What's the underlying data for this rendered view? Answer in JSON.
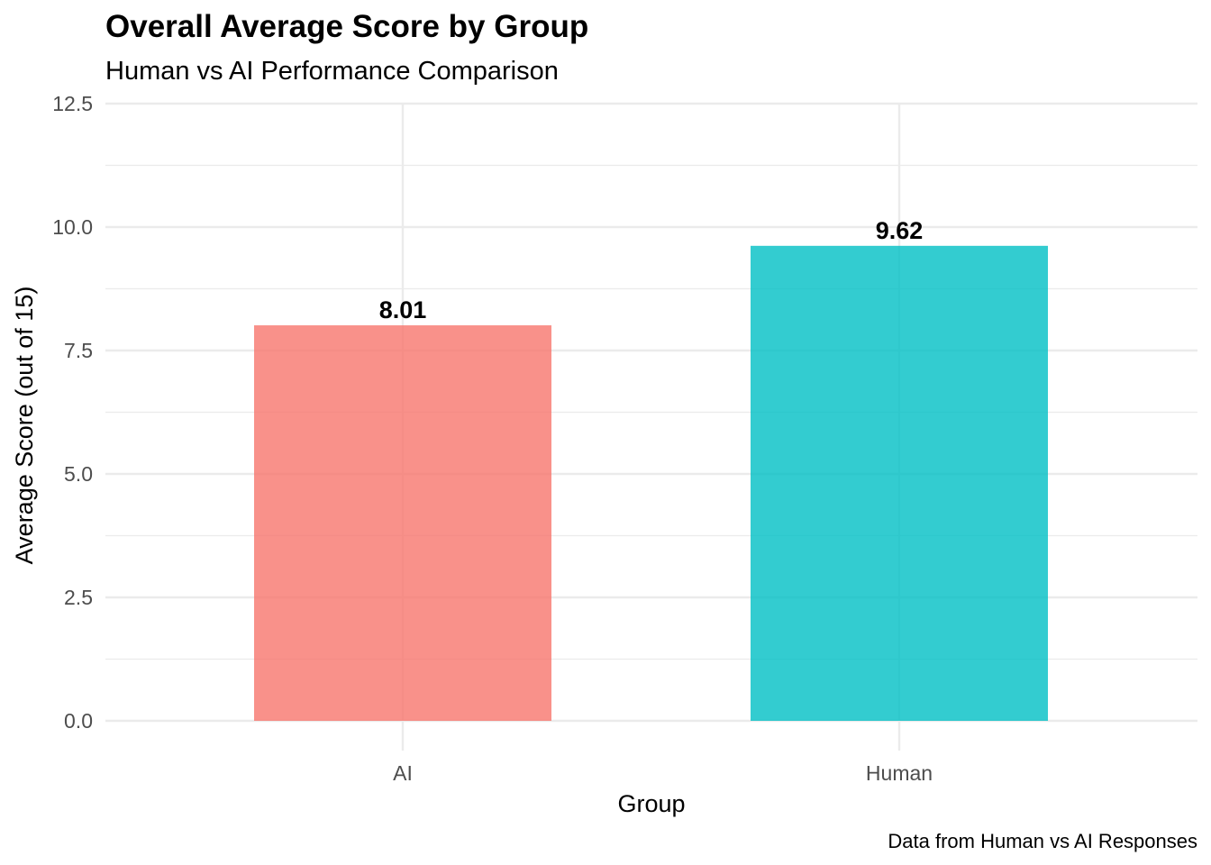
{
  "chart_data": {
    "type": "bar",
    "title": "Overall Average Score by Group",
    "subtitle": "Human vs AI Performance Comparison",
    "xlabel": "Group",
    "ylabel": "Average Score (out of 15)",
    "caption": "Data from Human vs AI Responses",
    "categories": [
      "AI",
      "Human"
    ],
    "values": [
      8.01,
      9.62
    ],
    "value_labels": [
      "8.01",
      "9.62"
    ],
    "colors": [
      "#f8766d",
      "#00bfc4"
    ],
    "ylim": [
      0,
      12.5
    ],
    "yticks": [
      0,
      2.5,
      5,
      7.5,
      10,
      12.5
    ],
    "ytick_labels": [
      "0.0",
      "2.5",
      "5.0",
      "7.5",
      "10.0",
      "12.5"
    ],
    "grid": true,
    "legend": "none"
  }
}
